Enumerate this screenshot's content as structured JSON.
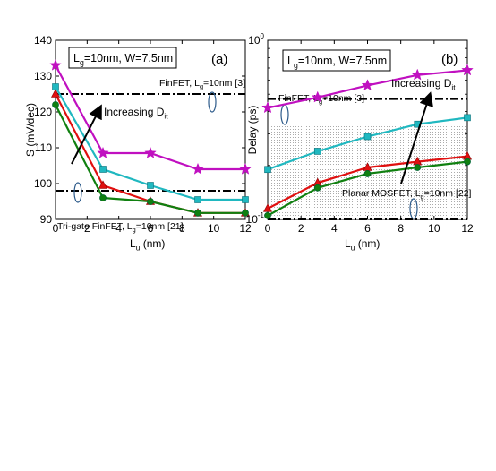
{
  "chart_data": [
    {
      "type": "line",
      "panel": "(a)",
      "box_label": {
        "main": "L",
        "sub": "g",
        "rest": "=10nm, W=7.5nm"
      },
      "xlabel": {
        "main": "L",
        "sub": "u",
        "rest": " (nm)"
      },
      "ylabel": "S (mV/dec)",
      "xlim": [
        0,
        12
      ],
      "ylim": [
        90,
        140
      ],
      "xticks": [
        "0",
        "2",
        "4",
        "6",
        "8",
        "10",
        "12"
      ],
      "xtick_values": [
        0,
        2,
        4,
        6,
        8,
        10,
        12
      ],
      "yticks": [
        "90",
        "100",
        "110",
        "120",
        "130",
        "140"
      ],
      "ytick_values": [
        90,
        100,
        110,
        120,
        130,
        140
      ],
      "x": [
        0,
        3,
        6,
        9,
        12
      ],
      "series": [
        {
          "color": "#c010c0",
          "marker": "star",
          "values": [
            133,
            108.5,
            108.5,
            104,
            104
          ]
        },
        {
          "color": "#20b8c0",
          "marker": "square",
          "values": [
            127,
            104,
            99.5,
            95.5,
            95.5
          ]
        },
        {
          "color": "#e01010",
          "marker": "triangle",
          "values": [
            125,
            99.5,
            95,
            91.8,
            91.8
          ]
        },
        {
          "color": "#108010",
          "marker": "circle",
          "values": [
            122,
            96,
            95,
            91.8,
            91.8
          ]
        }
      ],
      "reference_lines": [
        {
          "y": 125,
          "label": {
            "main": "FinFET, L",
            "sub": "g",
            "rest": "=10nm [3]"
          }
        },
        {
          "y": 98,
          "label": {
            "main": "Tri-gate FinFET, L",
            "sub": "g",
            "rest": "=10nm [21]"
          }
        }
      ],
      "annotation": {
        "main": "Increasing D",
        "sub": "it"
      }
    },
    {
      "type": "line",
      "panel": "(b)",
      "box_label": {
        "main": "L",
        "sub": "g",
        "rest": "=10nm, W=7.5nm"
      },
      "xlabel": {
        "main": "L",
        "sub": "u",
        "rest": " (nm)"
      },
      "ylabel": "Delay (ps)",
      "xlim": [
        0,
        12
      ],
      "ylim_log10": [
        1,
        0
      ],
      "log_scale": true,
      "xticks": [
        "0",
        "2",
        "4",
        "6",
        "8",
        "10",
        "12"
      ],
      "xtick_values": [
        0,
        2,
        4,
        6,
        8,
        10,
        12
      ],
      "yticks": [
        {
          "base": "10",
          "exp": "0",
          "value": 1
        },
        {
          "base": "10",
          "exp": "-1",
          "value": 0.1
        }
      ],
      "x": [
        0,
        3,
        6,
        9,
        12
      ],
      "series": [
        {
          "color": "#c010c0",
          "marker": "star",
          "values": [
            0.42,
            0.48,
            0.56,
            0.64,
            0.68
          ]
        },
        {
          "color": "#20b8c0",
          "marker": "square",
          "values": [
            0.19,
            0.24,
            0.29,
            0.34,
            0.37
          ]
        },
        {
          "color": "#e01010",
          "marker": "triangle",
          "values": [
            0.115,
            0.16,
            0.195,
            0.21,
            0.225
          ]
        },
        {
          "color": "#108010",
          "marker": "circle",
          "values": [
            0.105,
            0.15,
            0.18,
            0.195,
            0.21
          ]
        }
      ],
      "reference_lines": [
        {
          "y": 0.47,
          "label": {
            "main": "FinFET, L",
            "sub": "g",
            "rest": "=10nm [3]"
          }
        },
        {
          "y": 0.1,
          "label": {
            "main": "Planar MOSFET, L",
            "sub": "g",
            "rest": "=10nm [22]"
          }
        }
      ],
      "annotation": {
        "main": "Increasing D",
        "sub": "it"
      }
    }
  ]
}
